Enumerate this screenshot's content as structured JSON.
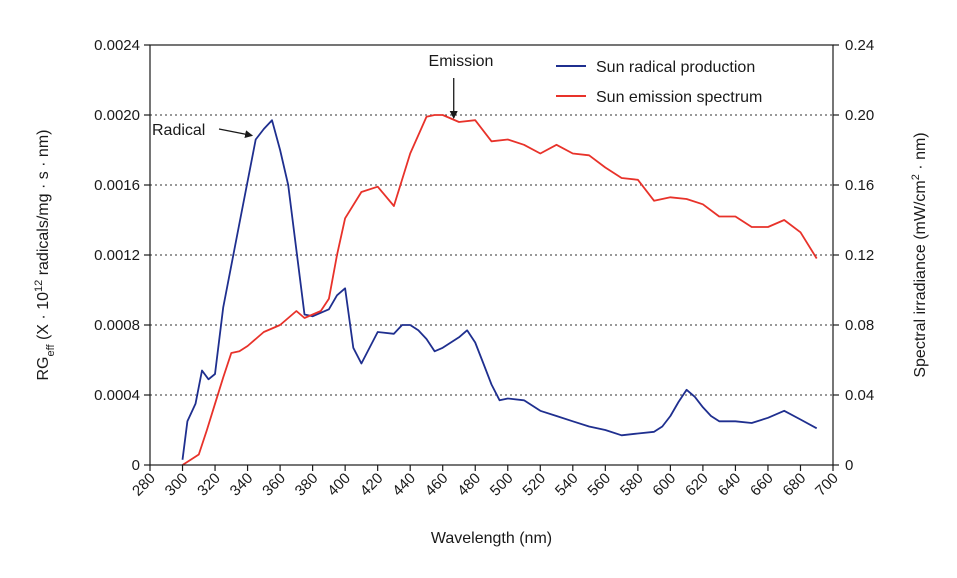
{
  "chart_data": {
    "type": "line",
    "xlabel": "Wavelength (nm)",
    "ylabel_left": {
      "base": "RG",
      "sub": "eff",
      "text_before_sup": " (X · 10",
      "sup": "12",
      "text_after_sup": " radicals/mg · s · nm)"
    },
    "ylabel_right": {
      "text_before_sup": "Spectral irradiance (mW/cm",
      "sup": "2",
      "text_after_sup": " · nm)"
    },
    "xlim": [
      280,
      700
    ],
    "xticks": [
      280,
      300,
      320,
      340,
      360,
      380,
      400,
      420,
      440,
      460,
      480,
      500,
      520,
      540,
      560,
      580,
      600,
      620,
      640,
      660,
      680,
      700
    ],
    "ylim_left": [
      0,
      0.0024
    ],
    "yticks_left": [
      "0",
      "0.0004",
      "0.0008",
      "0.0012",
      "0.0016",
      "0.0020",
      "0.0024"
    ],
    "ylim_right": [
      0,
      0.24
    ],
    "yticks_right": [
      "0",
      "0.04",
      "0.08",
      "0.12",
      "0.16",
      "0.20",
      "0.24"
    ],
    "grid": "horizontal-dotted",
    "legend_position": "top-right",
    "series": [
      {
        "name": "Sun radical production",
        "axis": "left",
        "color": "#1f2f8f",
        "x": [
          300,
          303,
          308,
          312,
          316,
          320,
          325,
          335,
          345,
          350,
          355,
          360,
          365,
          375,
          380,
          390,
          395,
          400,
          405,
          410,
          420,
          430,
          435,
          440,
          445,
          450,
          455,
          460,
          470,
          475,
          480,
          485,
          490,
          495,
          500,
          510,
          520,
          530,
          540,
          550,
          560,
          570,
          580,
          590,
          595,
          600,
          605,
          610,
          615,
          620,
          625,
          630,
          640,
          650,
          660,
          670,
          680,
          690
        ],
        "y": [
          3e-05,
          0.00025,
          0.00035,
          0.00054,
          0.00049,
          0.00052,
          0.0009,
          0.00138,
          0.00186,
          0.00192,
          0.00197,
          0.0018,
          0.0016,
          0.00086,
          0.00085,
          0.00089,
          0.00097,
          0.00101,
          0.00067,
          0.00058,
          0.00076,
          0.00075,
          0.0008,
          0.0008,
          0.00077,
          0.00072,
          0.00065,
          0.00067,
          0.00073,
          0.00077,
          0.0007,
          0.00058,
          0.00046,
          0.00037,
          0.00038,
          0.00037,
          0.00031,
          0.00028,
          0.00025,
          0.00022,
          0.0002,
          0.00017,
          0.00018,
          0.00019,
          0.00022,
          0.00028,
          0.00036,
          0.00043,
          0.00039,
          0.00033,
          0.00028,
          0.00025,
          0.00025,
          0.00024,
          0.00027,
          0.00031,
          0.00026,
          0.00021
        ]
      },
      {
        "name": "Sun emission spectrum",
        "axis": "right",
        "color": "#e8322a",
        "x": [
          300,
          305,
          310,
          315,
          320,
          325,
          330,
          335,
          340,
          345,
          350,
          355,
          360,
          370,
          375,
          385,
          390,
          395,
          400,
          410,
          420,
          430,
          440,
          450,
          455,
          460,
          470,
          480,
          490,
          500,
          510,
          520,
          530,
          540,
          550,
          560,
          570,
          580,
          590,
          600,
          610,
          620,
          630,
          640,
          650,
          660,
          670,
          680,
          690
        ],
        "y": [
          0.0,
          0.003,
          0.006,
          0.02,
          0.035,
          0.05,
          0.064,
          0.065,
          0.068,
          0.072,
          0.076,
          0.078,
          0.08,
          0.088,
          0.084,
          0.088,
          0.095,
          0.12,
          0.141,
          0.156,
          0.159,
          0.148,
          0.178,
          0.199,
          0.2,
          0.2,
          0.196,
          0.197,
          0.185,
          0.186,
          0.183,
          0.178,
          0.183,
          0.178,
          0.177,
          0.17,
          0.164,
          0.163,
          0.151,
          0.153,
          0.152,
          0.149,
          0.142,
          0.142,
          0.136,
          0.136,
          0.14,
          0.133,
          0.118
        ]
      }
    ],
    "annotations": [
      {
        "text": "Radical",
        "series": "Sun radical production",
        "x": 344,
        "y": 0.00186
      },
      {
        "text": "Emission",
        "series": "Sun emission spectrum",
        "x": 468,
        "y": 0.196
      }
    ]
  }
}
